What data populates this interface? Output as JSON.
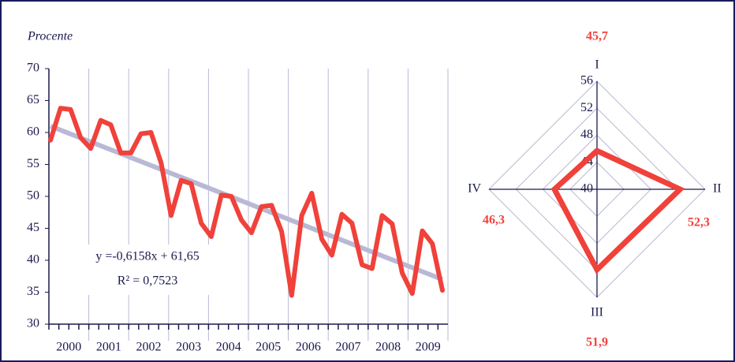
{
  "chart_data": [
    {
      "type": "line",
      "y_label": "Procente",
      "categories": [
        "2000",
        null,
        null,
        null,
        "2001",
        null,
        null,
        null,
        "2002",
        null,
        null,
        null,
        "2003",
        null,
        null,
        null,
        "2004",
        null,
        null,
        null,
        "2005",
        null,
        null,
        null,
        "2006",
        null,
        null,
        null,
        "2007",
        null,
        null,
        null,
        "2008",
        null,
        null,
        null,
        "2009",
        null,
        null,
        null
      ],
      "series": [
        {
          "color": "#f0413a",
          "values": [
            58.8,
            63.8,
            63.6,
            59.2,
            57.5,
            61.9,
            61.2,
            56.8,
            56.8,
            59.8,
            60.0,
            55.3,
            47.0,
            52.5,
            52.0,
            45.8,
            43.7,
            50.2,
            50.0,
            46.3,
            44.3,
            48.4,
            48.6,
            44.5,
            34.5,
            47.0,
            50.5,
            43.3,
            40.8,
            47.2,
            45.8,
            39.3,
            38.7,
            47.0,
            45.7,
            38.0,
            34.8,
            44.6,
            42.6,
            35.3
          ]
        }
      ],
      "trendline": {
        "x": [
          1,
          40
        ],
        "values": [
          61.0,
          37.0
        ],
        "color": "#b9b9d6"
      },
      "annotations": [
        "y =-0,6158x + 61,65",
        "R² = 0,7523"
      ],
      "ylim": [
        30,
        70
      ],
      "yticks": [
        30,
        35,
        40,
        45,
        50,
        55,
        60,
        65,
        70
      ],
      "grid": true
    },
    {
      "type": "radar",
      "categories": [
        "I",
        "II",
        "III",
        "IV"
      ],
      "values": [
        45.7,
        52.3,
        51.9,
        46.3
      ],
      "value_labels": [
        "45,7",
        "52,3",
        "51,9",
        "46,3"
      ],
      "rlim": [
        40,
        56
      ],
      "rticks": [
        40,
        44,
        48,
        52,
        56
      ],
      "color": "#f0413a"
    }
  ]
}
